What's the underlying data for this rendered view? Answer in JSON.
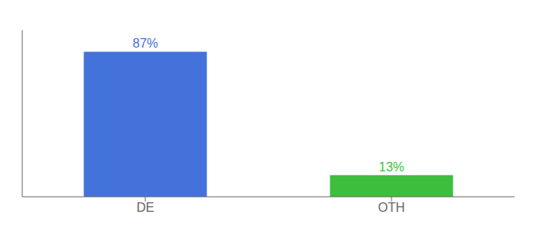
{
  "chart_data": {
    "type": "bar",
    "categories": [
      "DE",
      "OTH"
    ],
    "values": [
      87,
      13
    ],
    "value_labels": [
      "87%",
      "13%"
    ],
    "data_labels": true,
    "colors": [
      "#4472db",
      "#3dbf3d"
    ],
    "ylim": [
      0,
      100
    ],
    "tick_labels": "x",
    "grid": false
  }
}
